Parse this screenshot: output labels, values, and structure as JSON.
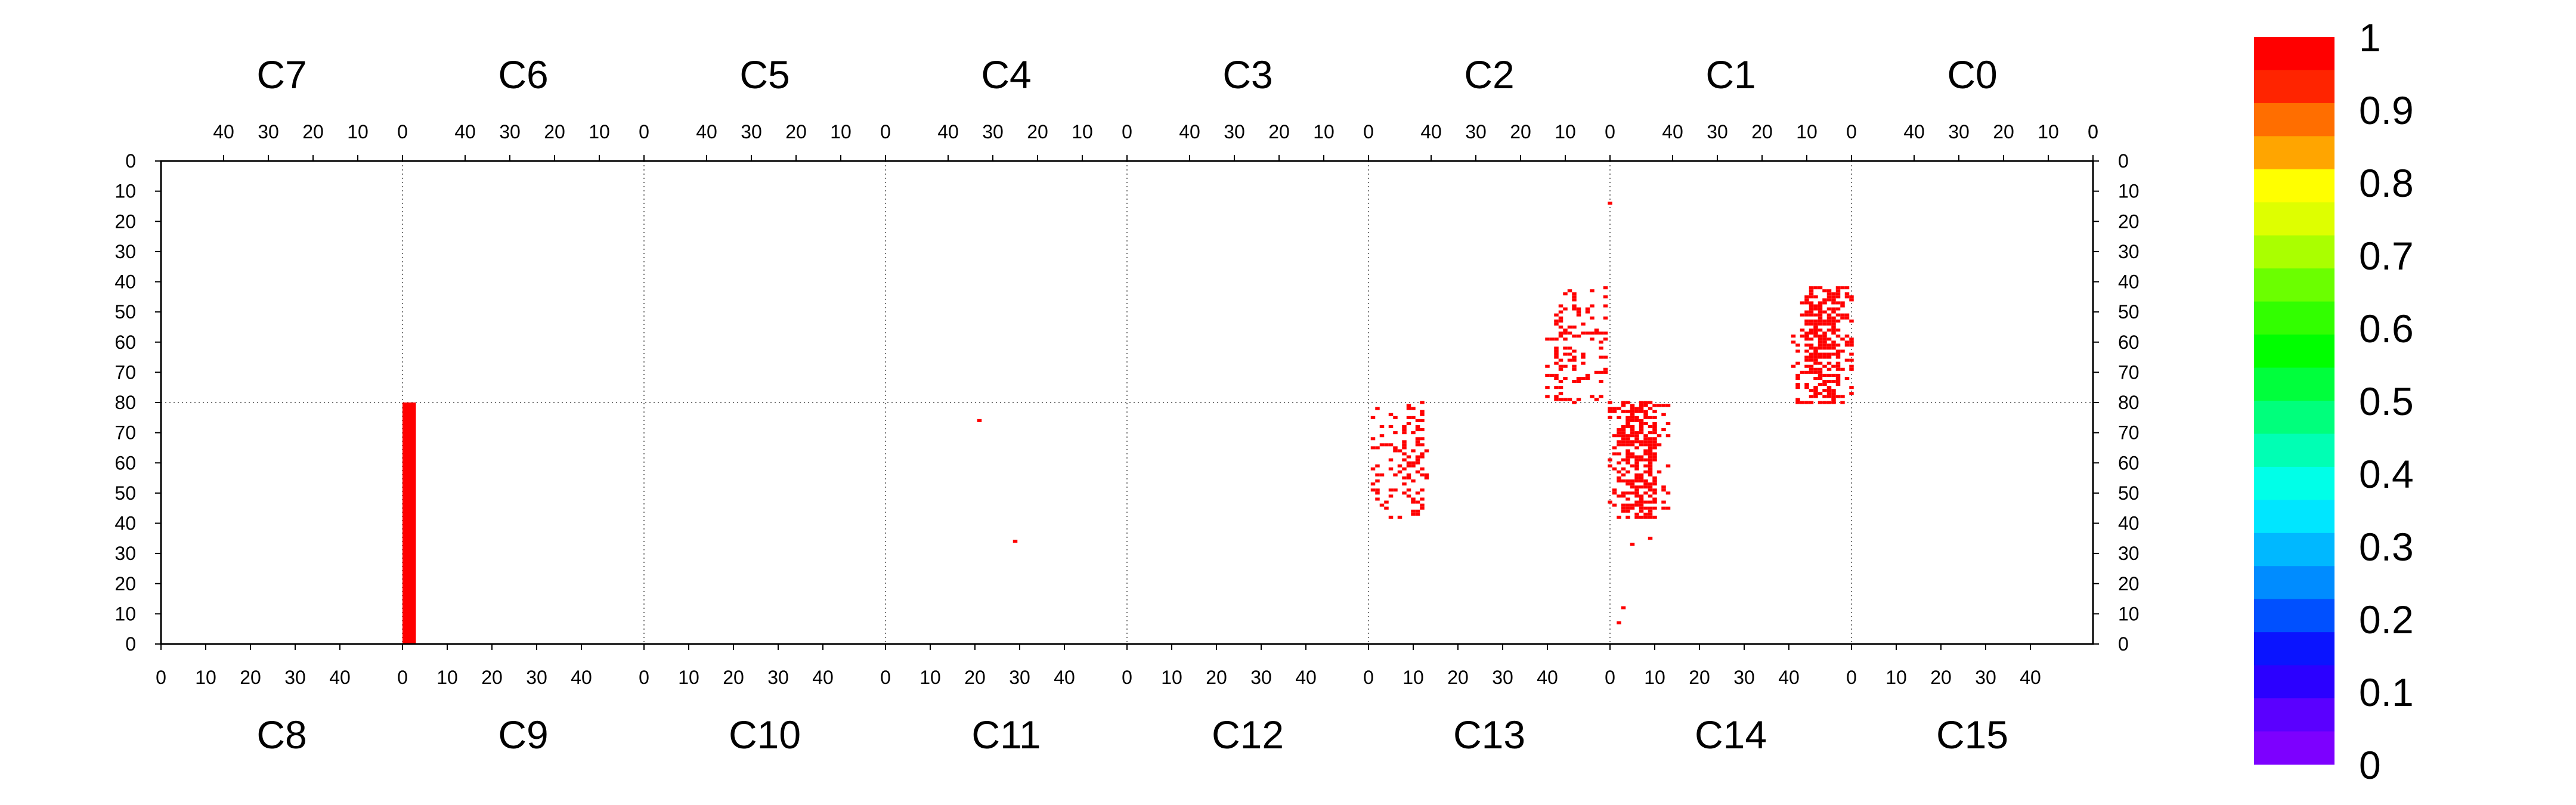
{
  "chart_data": {
    "type": "heatmap",
    "title": "",
    "xlabel": "",
    "ylabel": "",
    "grid": true,
    "color_scale": {
      "min": 0,
      "max": 1,
      "step": 0.1
    },
    "colorbar": {
      "ticks": [
        "1",
        "0.9",
        "0.8",
        "0.7",
        "0.6",
        "0.5",
        "0.4",
        "0.3",
        "0.2",
        "0.1",
        "0"
      ],
      "colors": [
        "#ff0000",
        "#ff2400",
        "#ff6e00",
        "#ffa500",
        "#ffff00",
        "#deff00",
        "#aaff00",
        "#6bff00",
        "#32ff00",
        "#00ff00",
        "#00ff3c",
        "#00ff7c",
        "#00ffb4",
        "#00ffe8",
        "#00e6ff",
        "#00b8ff",
        "#008cff",
        "#0050ff",
        "#0a14ff",
        "#2b00ff",
        "#5a00ff",
        "#7d00ff"
      ]
    },
    "top_labels": [
      "C7",
      "C6",
      "C5",
      "C4",
      "C3",
      "C2",
      "C1",
      "C0"
    ],
    "bottom_labels": [
      "C8",
      "C9",
      "C10",
      "C11",
      "C12",
      "C13",
      "C14",
      "C15"
    ],
    "top_ticks": [
      "40",
      "30",
      "20",
      "10",
      "0"
    ],
    "bottom_ticks": [
      "0",
      "10",
      "20",
      "30",
      "40"
    ],
    "upper_y_ticks": [
      "0",
      "10",
      "20",
      "30",
      "40",
      "50",
      "60",
      "70",
      "80"
    ],
    "lower_y_ticks": [
      "80",
      "70",
      "60",
      "50",
      "40",
      "30",
      "20",
      "10",
      "0"
    ],
    "panel_range": 54,
    "y_range": [
      0,
      80
    ],
    "bars": [
      {
        "panel": "C9",
        "x0": 0,
        "x1": 3,
        "y0": 0,
        "y1": 80,
        "value": 1
      }
    ],
    "hits": {
      "value": 1,
      "points": [
        {
          "panel": "C2",
          "x": 0,
          "y": 14
        },
        {
          "panel": "C11",
          "x": 21,
          "y": 74
        },
        {
          "panel": "C11",
          "x": 29,
          "y": 34
        },
        {
          "panel": "C14",
          "x": 3,
          "y": 12
        },
        {
          "panel": "C14",
          "x": 2,
          "y": 7
        },
        {
          "panel": "C14",
          "x": 5,
          "y": 33
        },
        {
          "panel": "C14",
          "x": 9,
          "y": 35
        }
      ]
    }
  }
}
